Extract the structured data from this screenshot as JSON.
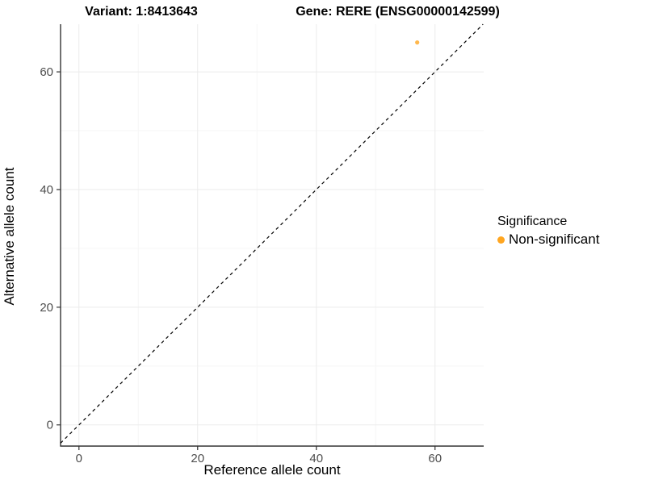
{
  "titles": {
    "variant": "Variant: 1:8413643",
    "gene": "Gene: RERE (ENSG00000142599)"
  },
  "chart_data": {
    "type": "scatter",
    "title_left": "Variant: 1:8413643",
    "title_right": "Gene: RERE (ENSG00000142599)",
    "xlabel": "Reference allele count",
    "ylabel": "Alternative allele count",
    "xlim": [
      -3.1,
      68.2
    ],
    "ylim": [
      -3.6,
      68.1
    ],
    "xticks": [
      0,
      20,
      40,
      60
    ],
    "yticks": [
      0,
      20,
      40,
      60
    ],
    "minor_xticks": [
      10,
      30,
      50
    ],
    "minor_yticks": [
      10,
      30,
      50
    ],
    "grid": true,
    "points": [
      {
        "x": 57,
        "y": 65,
        "series": "Non-significant"
      }
    ],
    "reference_line": {
      "type": "identity",
      "style": "dashed",
      "color": "#000000"
    },
    "legend": {
      "position": "right",
      "title": "Significance",
      "items": [
        {
          "label": "Non-significant",
          "color": "#FFA620"
        }
      ]
    },
    "point_color": "#FFA620",
    "point_opacity": 0.8
  },
  "colors": {
    "accent_orange": "#FFA620",
    "axis_line": "#333333",
    "tick_label": "#4D4D4D",
    "grid_major": "#EBEBEB",
    "grid_minor": "#F6F6F6",
    "background": "#FFFFFF"
  }
}
